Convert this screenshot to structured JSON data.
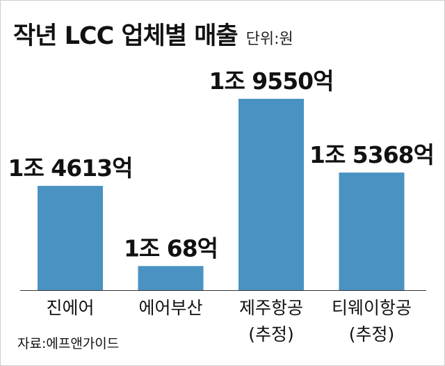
{
  "title": "작년 LCC 업체별 매출",
  "unit": "단위:원",
  "source": "자료:에프앤가이드",
  "colors": {
    "bar": "#4a92c2",
    "text": "#111111",
    "axis": "#333333"
  },
  "chart_data": {
    "type": "bar",
    "title": "작년 LCC 업체별 매출",
    "categories": [
      "진에어",
      "에어부산",
      "제주항공",
      "티웨이항공"
    ],
    "category_notes": [
      "",
      "",
      "(추정)",
      "(추정)"
    ],
    "values": [
      14613,
      10068,
      19550,
      15368
    ],
    "value_unit": "억원",
    "data_labels": [
      "1조 4613억",
      "1조 68억",
      "1조 9550억",
      "1조 5368억"
    ],
    "xlabel": "",
    "ylabel": "",
    "grid": false,
    "legend": "none"
  }
}
